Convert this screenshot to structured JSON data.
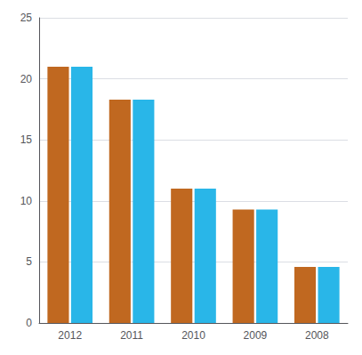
{
  "chart_data": {
    "type": "bar",
    "categories": [
      "2012",
      "2011",
      "2010",
      "2009",
      "2008"
    ],
    "series": [
      {
        "color": "#C06820",
        "values": [
          21,
          18.3,
          11,
          9.3,
          4.6
        ]
      },
      {
        "color": "#29B6E8",
        "values": [
          21,
          18.3,
          11,
          9.3,
          4.6
        ]
      }
    ],
    "ylim": [
      0,
      25
    ],
    "yticks": [
      0,
      5,
      10,
      15,
      20,
      25
    ],
    "grid": true
  }
}
